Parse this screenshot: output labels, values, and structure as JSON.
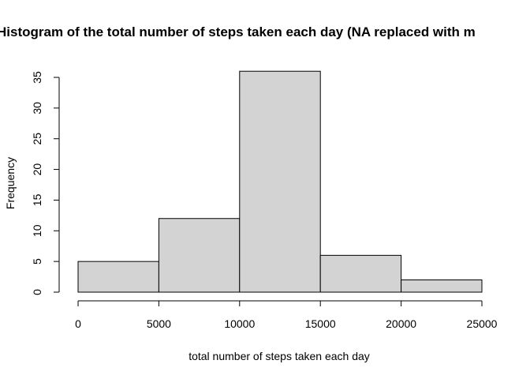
{
  "chart_data": {
    "type": "bar",
    "title": "Histogram of the total number of steps taken each day (NA replaced with m",
    "xlabel": "total number of steps taken each day",
    "ylabel": "Frequency",
    "bins": [
      {
        "from": 0,
        "to": 5000,
        "count": 5
      },
      {
        "from": 5000,
        "to": 10000,
        "count": 12
      },
      {
        "from": 10000,
        "to": 15000,
        "count": 36
      },
      {
        "from": 15000,
        "to": 20000,
        "count": 6
      },
      {
        "from": 20000,
        "to": 25000,
        "count": 2
      }
    ],
    "xlim": [
      0,
      25000
    ],
    "ylim": [
      0,
      35
    ],
    "x_ticks": [
      0,
      5000,
      10000,
      15000,
      20000,
      25000
    ],
    "x_tick_labels": [
      "0",
      "5000",
      "10000",
      "15000",
      "20000",
      "25000"
    ],
    "y_ticks": [
      0,
      5,
      10,
      15,
      20,
      25,
      30,
      35
    ],
    "y_tick_labels": [
      "0",
      "5",
      "10",
      "15",
      "20",
      "25",
      "30",
      "35"
    ],
    "bar_color": "#d3d3d3",
    "grid": false,
    "legend": "none"
  }
}
